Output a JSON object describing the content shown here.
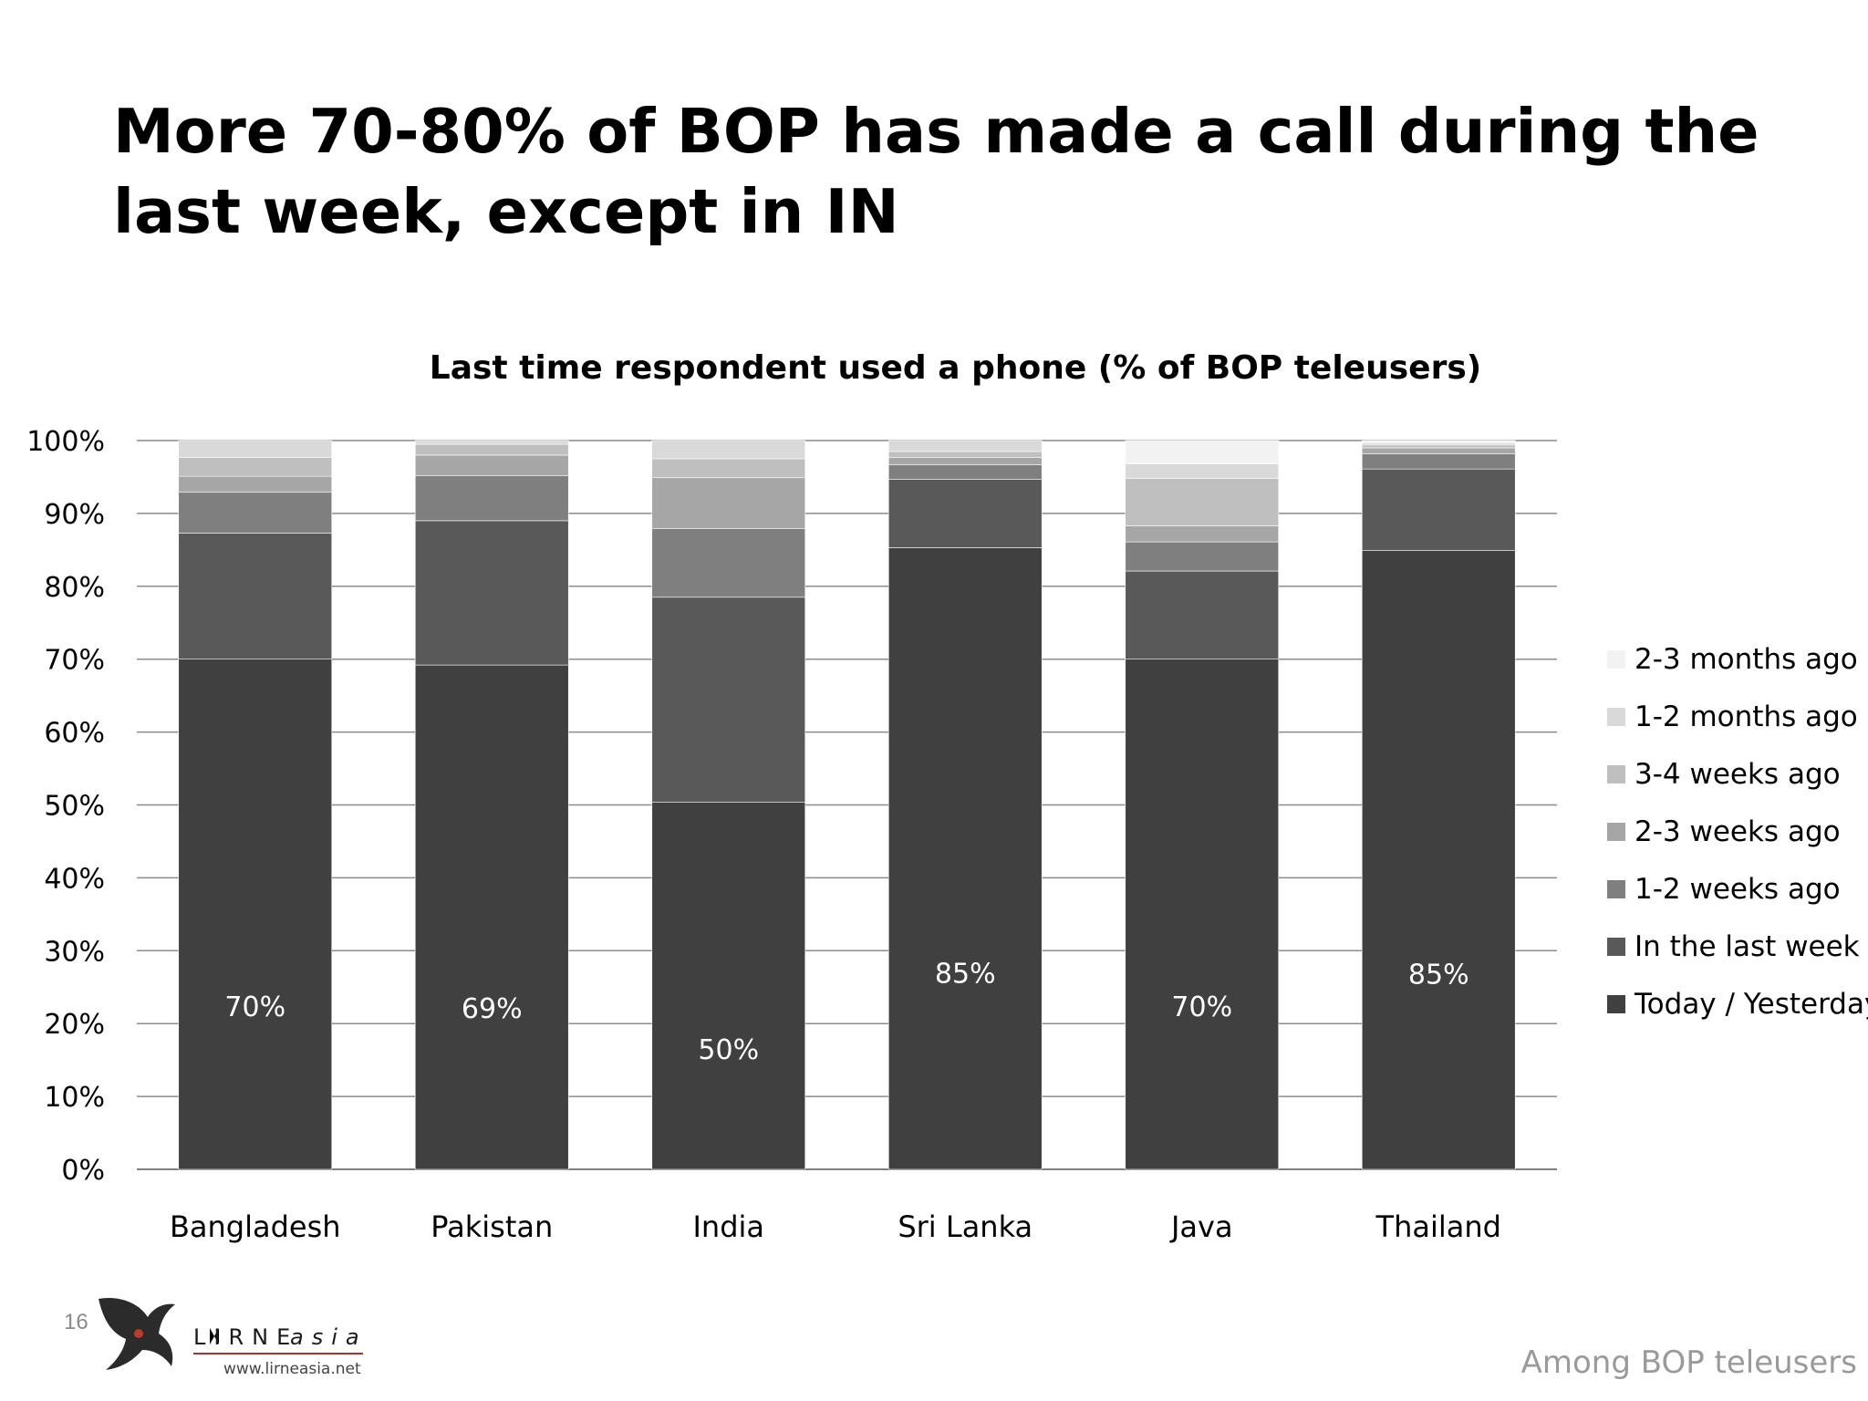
{
  "slide": {
    "title": "More 70-80% of BOP has made a call during the last week, except in IN",
    "number": "16",
    "footer_note": "Among BOP teleusers"
  },
  "logo": {
    "text": "LIRNEasia",
    "url": "www.lirneasia.net"
  },
  "chart_data": {
    "type": "bar",
    "stacked": true,
    "title": "Last  time respondent used a phone (% of BOP teleusers)",
    "categories": [
      "Bangladesh",
      "Pakistan",
      "India",
      "Sri Lanka",
      "Java",
      "Thailand"
    ],
    "ylim": [
      0,
      100
    ],
    "yticks": [
      "0%",
      "10%",
      "20%",
      "30%",
      "40%",
      "50%",
      "60%",
      "70%",
      "80%",
      "90%",
      "100%"
    ],
    "grid": true,
    "legend_position": "right",
    "series": [
      {
        "name": "Today / Yesterday",
        "color": "#404040",
        "values": [
          70,
          69.2,
          50.4,
          85.3,
          70,
          84.9
        ],
        "labels": [
          "70%",
          "69%",
          "50%",
          "85%",
          "70%",
          "85%"
        ]
      },
      {
        "name": "In the last week",
        "color": "#595959",
        "values": [
          17.3,
          19.8,
          28.1,
          9.4,
          12.1,
          11.2
        ]
      },
      {
        "name": "1-2 weeks ago",
        "color": "#7f7f7f",
        "values": [
          5.6,
          6.2,
          9.4,
          2.0,
          4.0,
          2.1
        ]
      },
      {
        "name": "2-3 weeks ago",
        "color": "#a6a6a6",
        "values": [
          2.2,
          2.8,
          7.0,
          1.0,
          2.2,
          0.8
        ]
      },
      {
        "name": "3-4 weeks ago",
        "color": "#bfbfbf",
        "values": [
          2.6,
          1.5,
          2.6,
          0.8,
          6.5,
          0.4
        ]
      },
      {
        "name": "1-2 months ago",
        "color": "#d9d9d9",
        "values": [
          2.3,
          0.5,
          2.5,
          1.5,
          2.0,
          0.3
        ]
      },
      {
        "name": "2-3 months ago",
        "color": "#f2f2f2",
        "values": [
          0,
          0,
          0,
          0,
          3.2,
          0.3
        ]
      }
    ]
  }
}
